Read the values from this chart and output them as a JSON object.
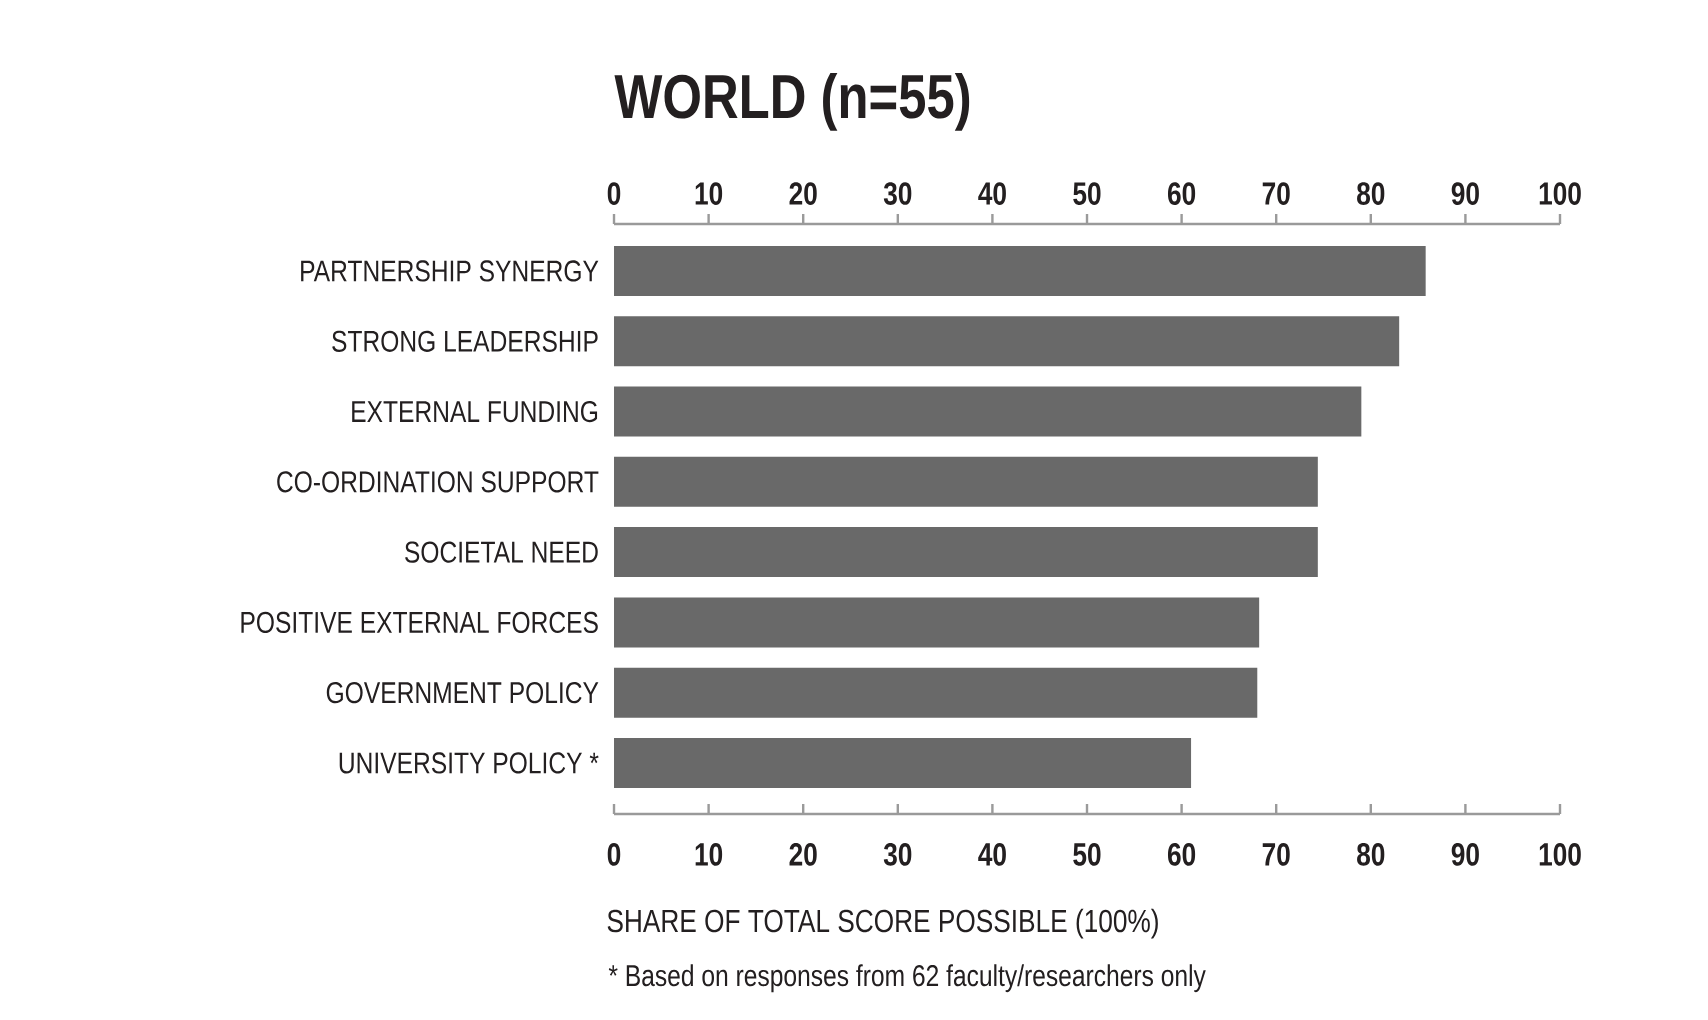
{
  "chart_data": {
    "type": "bar",
    "orientation": "horizontal",
    "title": "WORLD (n=55)",
    "xlabel": "SHARE OF TOTAL SCORE POSSIBLE (100%)",
    "categories": [
      "PARTNERSHIP SYNERGY",
      "STRONG LEADERSHIP",
      "EXTERNAL FUNDING",
      "CO-ORDINATION SUPPORT",
      "SOCIETAL NEED",
      "POSITIVE EXTERNAL FORCES",
      "GOVERNMENT POLICY",
      "UNIVERSITY POLICY *"
    ],
    "values": [
      85.8,
      83,
      79,
      74.4,
      74.4,
      68.2,
      68,
      61
    ],
    "color": "#696969",
    "xlim": [
      0,
      100
    ],
    "xticks": [
      0,
      10,
      20,
      30,
      40,
      50,
      60,
      70,
      80,
      90,
      100
    ],
    "x2lim": [
      0,
      100
    ],
    "x2ticks": [
      0,
      10,
      20,
      30,
      40,
      50,
      60,
      70,
      80,
      90,
      100
    ],
    "annotations": [
      "* Based on responses from 62 faculty/researchers only"
    ]
  }
}
